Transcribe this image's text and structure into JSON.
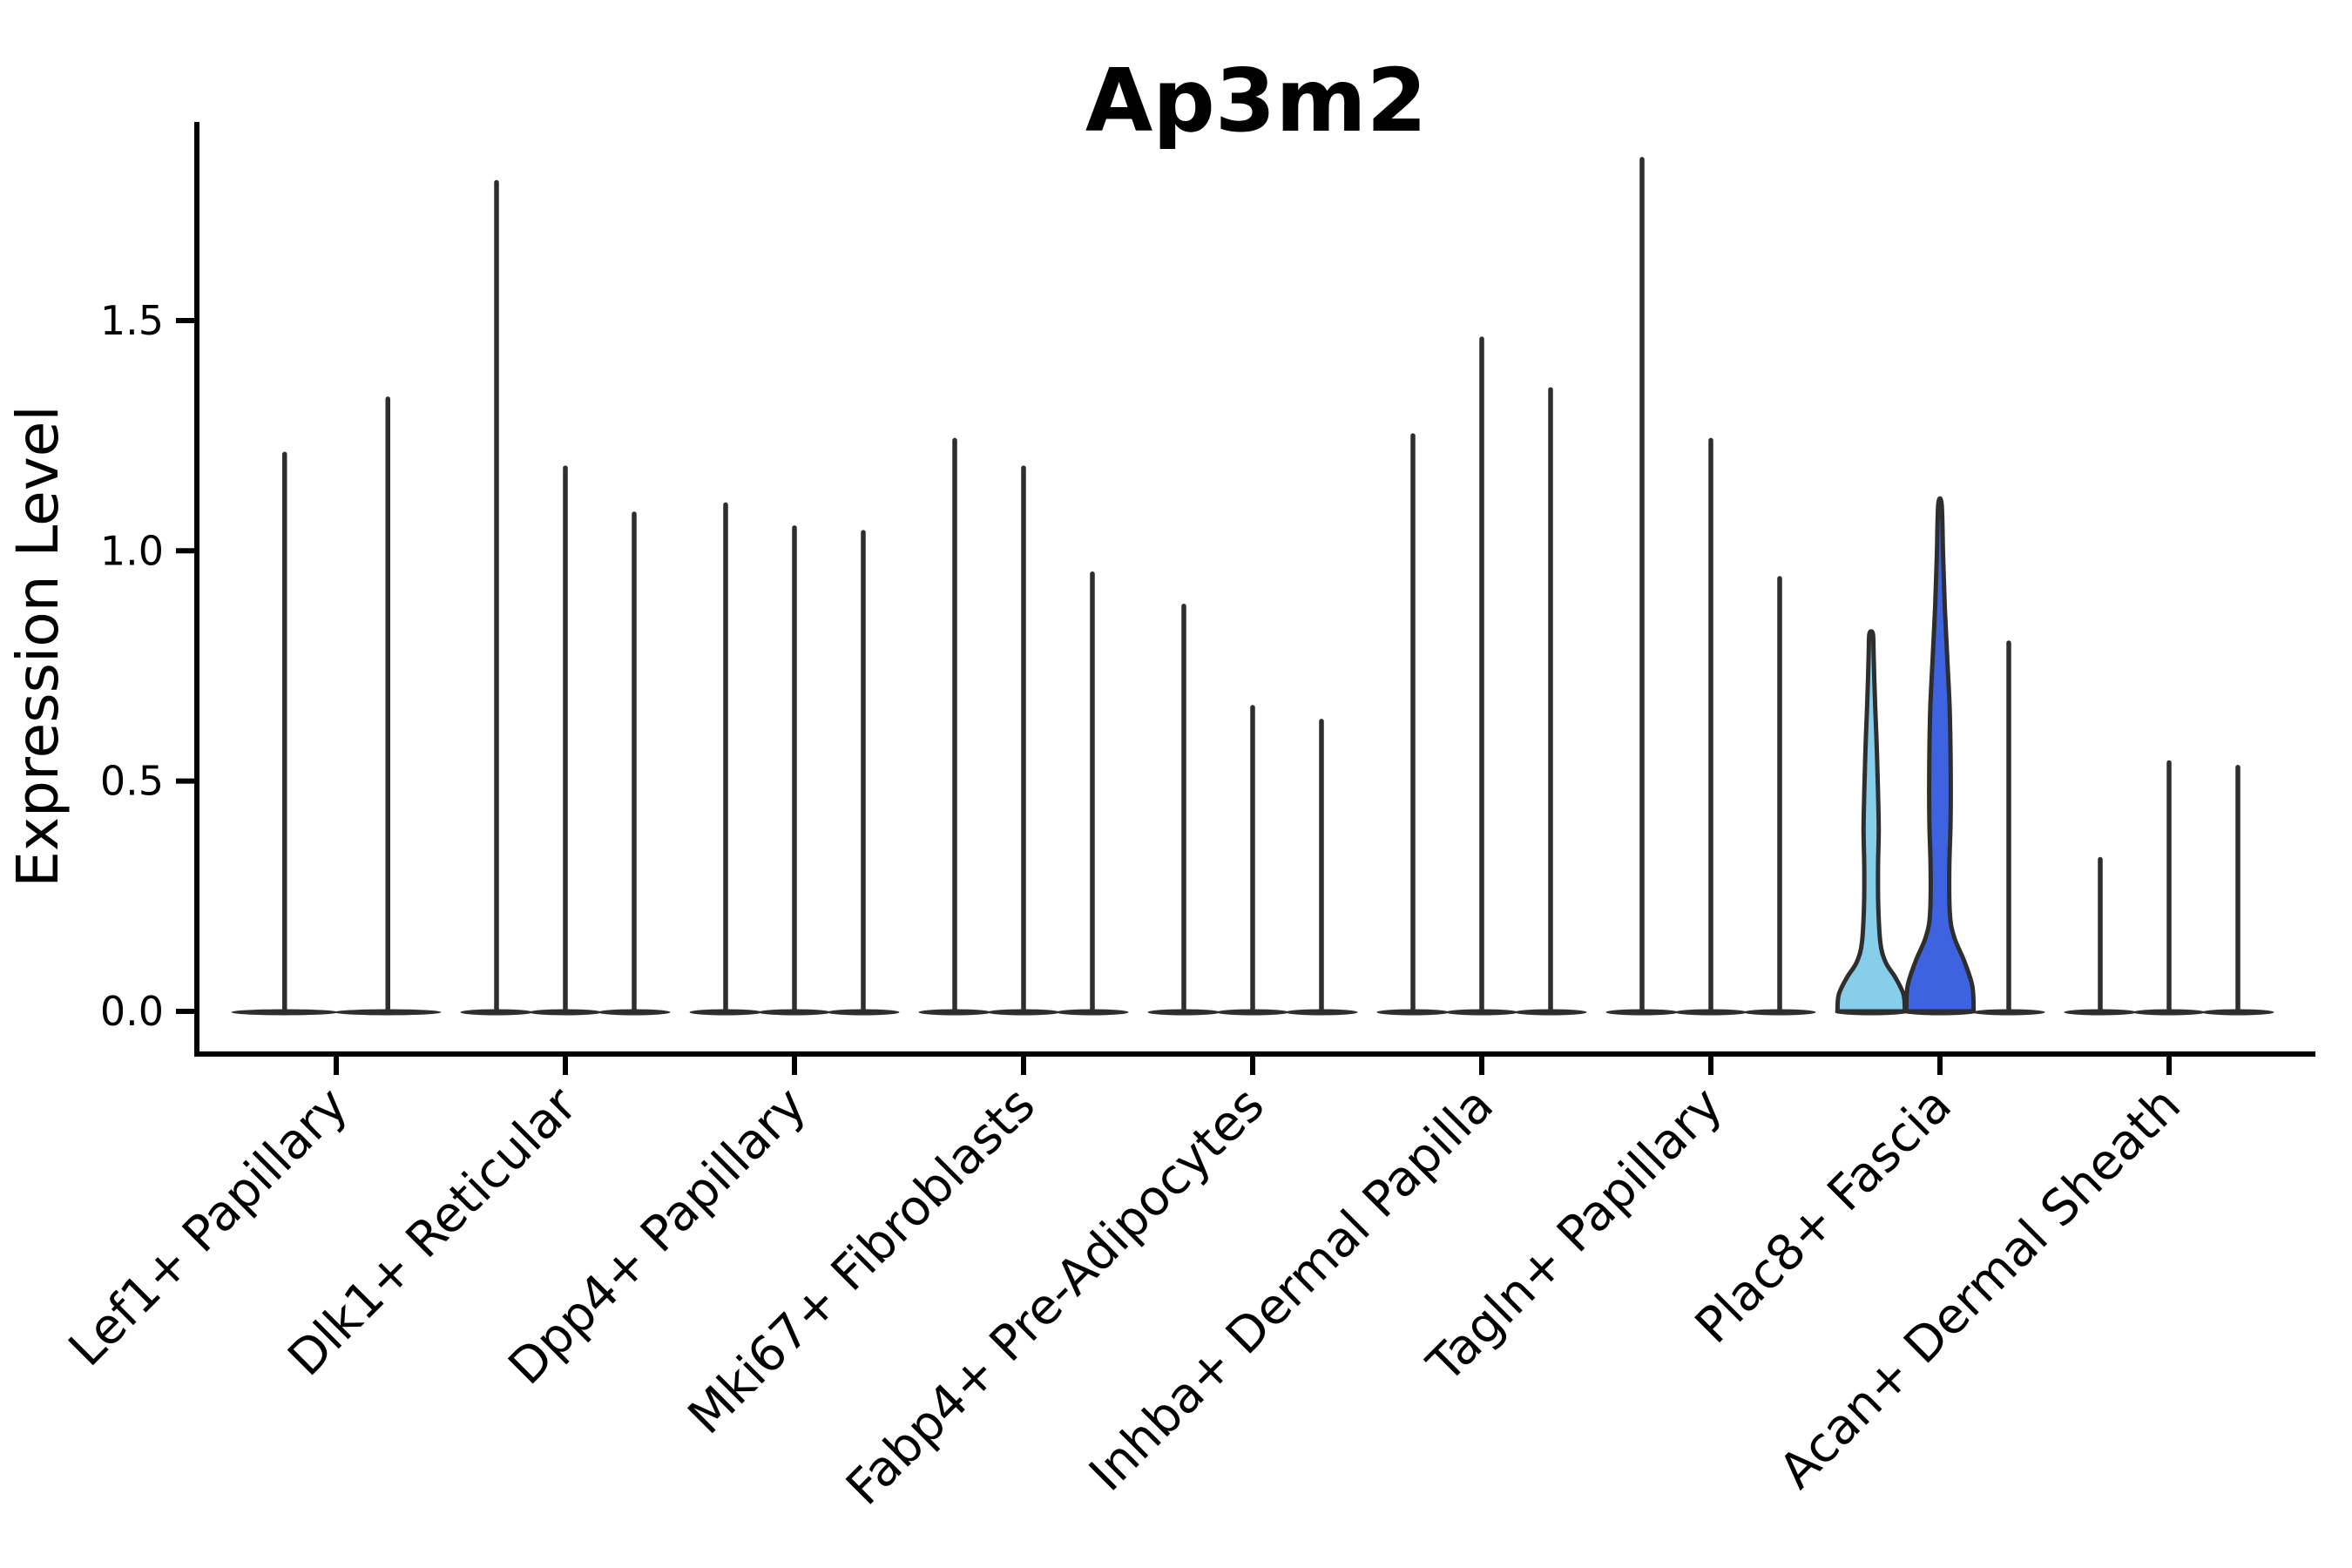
{
  "chart_data": {
    "type": "violin",
    "title": "Ap3m2",
    "ylabel": "Expression Level",
    "xlabel": "",
    "yticks": [
      0.0,
      0.5,
      1.0,
      1.5
    ],
    "ytick_labels": [
      "0.0",
      "0.5",
      "1.0",
      "1.5"
    ],
    "ylim": [
      -0.09,
      1.93
    ],
    "grid": "off",
    "legend": "none",
    "categories": [
      "Lef1+ Papillary",
      "Dlk1+ Reticular",
      "Dpp4+ Papillary",
      "Mki67+ Fibroblasts",
      "Fabp4+ Pre-Adipocytes",
      "Inhba+ Dermal Papilla",
      "Tagln+ Papillary",
      "Plac8+ Fascia",
      "Acan+ Dermal Sheath"
    ],
    "groups": [
      {
        "category": "Lef1+ Papillary",
        "violins": [
          {
            "max": 1.21
          },
          {
            "max": 1.33
          }
        ]
      },
      {
        "category": "Dlk1+ Reticular",
        "violins": [
          {
            "max": 1.8
          },
          {
            "max": 1.18
          },
          {
            "max": 1.08
          }
        ]
      },
      {
        "category": "Dpp4+ Papillary",
        "violins": [
          {
            "max": 1.1
          },
          {
            "max": 1.05
          },
          {
            "max": 1.04
          }
        ]
      },
      {
        "category": "Mki67+ Fibroblasts",
        "violins": [
          {
            "max": 1.24
          },
          {
            "max": 1.18
          },
          {
            "max": 0.95
          }
        ]
      },
      {
        "category": "Fabp4+ Pre-Adipocytes",
        "violins": [
          {
            "max": 0.88
          },
          {
            "max": 0.66
          },
          {
            "max": 0.63
          }
        ]
      },
      {
        "category": "Inhba+ Dermal Papilla",
        "violins": [
          {
            "max": 1.25
          },
          {
            "max": 1.46
          },
          {
            "max": 1.35
          }
        ]
      },
      {
        "category": "Tagln+ Papillary",
        "violins": [
          {
            "max": 1.85
          },
          {
            "max": 1.24
          },
          {
            "max": 0.94
          }
        ]
      },
      {
        "category": "Plac8+ Fascia",
        "violins": [
          {
            "max": 0.82,
            "fill": "#87CEEB",
            "body": "slim"
          },
          {
            "max": 1.1,
            "fill": "#3E63E0",
            "body": "wide"
          },
          {
            "max": 0.8
          }
        ]
      },
      {
        "category": "Acan+ Dermal Sheath",
        "violins": [
          {
            "max": 0.33
          },
          {
            "max": 0.54
          },
          {
            "max": 0.53
          }
        ]
      }
    ],
    "body_profiles": {
      "slim": [
        [
          0,
          0.98
        ],
        [
          0.045,
          0.94
        ],
        [
          0.09,
          0.7
        ],
        [
          0.13,
          0.42
        ],
        [
          0.18,
          0.27
        ],
        [
          0.27,
          0.21
        ],
        [
          0.38,
          0.2
        ],
        [
          0.48,
          0.22
        ],
        [
          0.58,
          0.2
        ],
        [
          0.68,
          0.17
        ],
        [
          0.78,
          0.13
        ],
        [
          0.88,
          0.09
        ],
        [
          0.95,
          0.07
        ],
        [
          1,
          0.05
        ]
      ],
      "wide": [
        [
          0,
          0.98
        ],
        [
          0.05,
          0.94
        ],
        [
          0.1,
          0.7
        ],
        [
          0.145,
          0.42
        ],
        [
          0.19,
          0.29
        ],
        [
          0.28,
          0.27
        ],
        [
          0.38,
          0.31
        ],
        [
          0.5,
          0.31
        ],
        [
          0.6,
          0.28
        ],
        [
          0.7,
          0.21
        ],
        [
          0.8,
          0.14
        ],
        [
          0.9,
          0.09
        ],
        [
          1,
          0.05
        ]
      ]
    },
    "styles": {
      "violin_outline": "#2e2e2e",
      "spike_color": "#2e2e2e",
      "baseline_fill": "#2e2e2e",
      "axis_color": "#000000",
      "highlight_light_blue": "#87CEEB",
      "highlight_royal_blue": "#3E63E0"
    }
  }
}
